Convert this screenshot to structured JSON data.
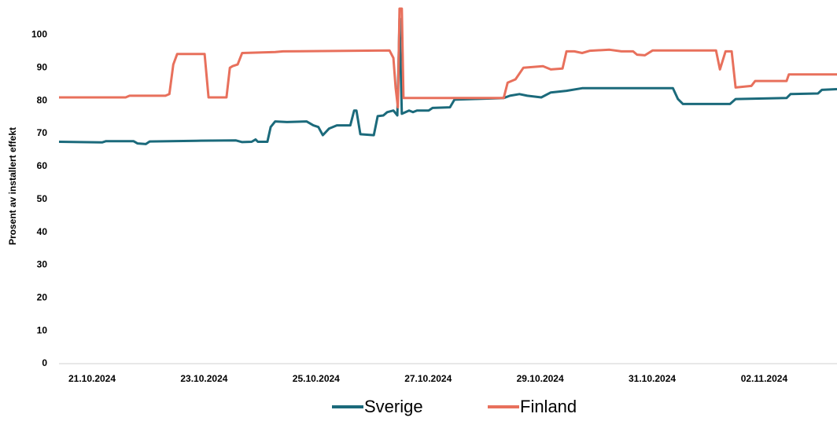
{
  "chart_data": {
    "type": "line",
    "y_label": "Prosent av installert effekt",
    "xlim": [
      -0.59,
      13.3
    ],
    "xticks": [
      {
        "value": 0,
        "label": "21.10.2024"
      },
      {
        "value": 2,
        "label": "23.10.2024"
      },
      {
        "value": 4,
        "label": "25.10.2024"
      },
      {
        "value": 6,
        "label": "27.10.2024"
      },
      {
        "value": 8,
        "label": "29.10.2024"
      },
      {
        "value": 10,
        "label": "31.10.2024"
      },
      {
        "value": 12,
        "label": "02.11.2024"
      }
    ],
    "ylim": [
      0,
      108
    ],
    "yticks": [
      0,
      10,
      20,
      30,
      40,
      50,
      60,
      70,
      80,
      90,
      100
    ],
    "series": [
      {
        "name": "Sverige",
        "color": "#1b6a7b",
        "x": [
          -0.59,
          0.18,
          0.25,
          0.74,
          0.81,
          0.96,
          1.03,
          1.87,
          2.57,
          2.68,
          2.85,
          2.92,
          2.96,
          3.13,
          3.19,
          3.27,
          3.48,
          3.83,
          3.95,
          4.04,
          4.12,
          4.23,
          4.37,
          4.61,
          4.68,
          4.72,
          4.79,
          5.03,
          5.1,
          5.2,
          5.27,
          5.38,
          5.45,
          5.49,
          5.53,
          5.66,
          5.73,
          5.8,
          6.01,
          6.08,
          6.39,
          6.47,
          7.35,
          7.46,
          7.63,
          7.77,
          8.02,
          8.19,
          8.47,
          8.75,
          10.37,
          10.46,
          10.55,
          11.28,
          11.39,
          11.49,
          12.4,
          12.47,
          12.96,
          13.03,
          13.3
        ],
        "values": [
          67.5,
          67.3,
          67.7,
          67.7,
          67,
          66.8,
          67.6,
          67.8,
          67.9,
          67.4,
          67.5,
          68.2,
          67.5,
          67.5,
          72,
          73.7,
          73.5,
          73.7,
          72.5,
          72,
          69.5,
          71.5,
          72.5,
          72.5,
          77,
          77,
          69.8,
          69.5,
          75.3,
          75.5,
          76.5,
          77,
          75.5,
          105,
          76,
          77,
          76.5,
          77,
          77,
          77.8,
          78,
          80.3,
          80.8,
          81.5,
          82,
          81.5,
          81,
          82.5,
          83,
          83.8,
          83.8,
          80.5,
          79,
          79,
          79,
          80.5,
          80.8,
          82,
          82.2,
          83.3,
          83.5
        ]
      },
      {
        "name": "Finland",
        "color": "#e8705c",
        "x": [
          -0.59,
          0.6,
          0.67,
          1.31,
          1.38,
          1.45,
          1.52,
          2.01,
          2.08,
          2.4,
          2.46,
          2.51,
          2.6,
          2.68,
          3.27,
          3.41,
          5.31,
          5.38,
          5.42,
          5.46,
          5.49,
          5.53,
          5.56,
          7.35,
          7.42,
          7.56,
          7.7,
          8.05,
          8.19,
          8.4,
          8.47,
          8.61,
          8.75,
          8.89,
          9.24,
          9.45,
          9.66,
          9.73,
          9.87,
          10.01,
          11.14,
          11.21,
          11.31,
          11.42,
          11.49,
          11.77,
          11.84,
          12.4,
          12.44,
          13.3
        ],
        "values": [
          81,
          81,
          81.5,
          81.5,
          82,
          91,
          94.2,
          94.2,
          81,
          81,
          90,
          90.5,
          91,
          94.5,
          94.8,
          95,
          95.3,
          93,
          84,
          78,
          108,
          108,
          80.8,
          80.8,
          85.5,
          86.5,
          90,
          90.5,
          89.5,
          89.8,
          95,
          95,
          94.5,
          95.2,
          95.5,
          95,
          95,
          94,
          93.8,
          95.3,
          95.3,
          89.5,
          95,
          95,
          84,
          84.5,
          86,
          86,
          88,
          88
        ]
      }
    ]
  }
}
